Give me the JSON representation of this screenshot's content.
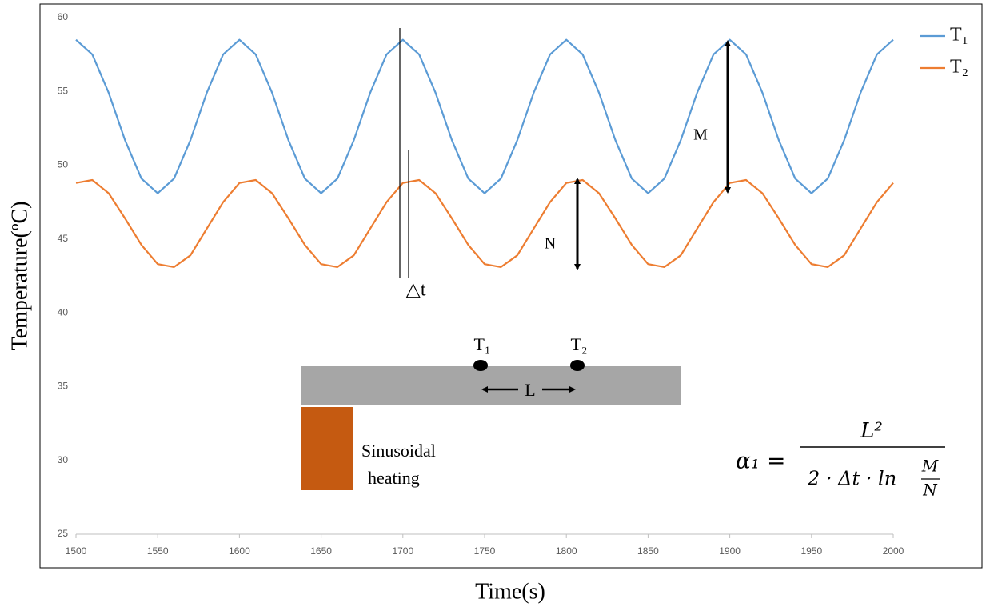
{
  "chart_data": {
    "type": "line",
    "x_label": "Time(s)",
    "y_label": "Temperature(ºC)",
    "x": [
      1500,
      1510,
      1520,
      1530,
      1540,
      1550,
      1560,
      1570,
      1580,
      1590,
      1600,
      1610,
      1620,
      1630,
      1640,
      1650,
      1660,
      1670,
      1680,
      1690,
      1700,
      1710,
      1720,
      1730,
      1740,
      1750,
      1760,
      1770,
      1780,
      1790,
      1800,
      1810,
      1820,
      1830,
      1840,
      1850,
      1860,
      1870,
      1880,
      1890,
      1900,
      1910,
      1920,
      1930,
      1940,
      1950,
      1960,
      1970,
      1980,
      1990,
      2000
    ],
    "series": [
      {
        "name": "T₁",
        "color": "#5b9bd5",
        "values": [
          58.5,
          57.5,
          54.9,
          51.7,
          49.1,
          48.1,
          49.1,
          51.7,
          54.9,
          57.5,
          58.5,
          57.5,
          54.9,
          51.7,
          49.1,
          48.1,
          49.1,
          51.7,
          54.9,
          57.5,
          58.5,
          57.5,
          54.9,
          51.7,
          49.1,
          48.1,
          49.1,
          51.7,
          54.9,
          57.5,
          58.5,
          57.5,
          54.9,
          51.7,
          49.1,
          48.1,
          49.1,
          51.7,
          54.9,
          57.5,
          58.5,
          57.5,
          54.9,
          51.7,
          49.1,
          48.1,
          49.1,
          51.7,
          54.9,
          57.5,
          58.5
        ]
      },
      {
        "name": "T₂",
        "color": "#ed7d31",
        "values": [
          48.8,
          49.0,
          48.1,
          46.4,
          44.6,
          43.3,
          43.1,
          43.9,
          45.7,
          47.5,
          48.8,
          49.0,
          48.1,
          46.4,
          44.6,
          43.3,
          43.1,
          43.9,
          45.7,
          47.5,
          48.8,
          49.0,
          48.1,
          46.4,
          44.6,
          43.3,
          43.1,
          43.9,
          45.7,
          47.5,
          48.8,
          49.0,
          48.1,
          46.4,
          44.6,
          43.3,
          43.1,
          43.9,
          45.7,
          47.5,
          48.8,
          49.0,
          48.1,
          46.4,
          44.6,
          43.3,
          43.1,
          43.9,
          45.7,
          47.5,
          48.8
        ]
      }
    ],
    "xlim": [
      1500,
      2000
    ],
    "xticks": [
      1500,
      1550,
      1600,
      1650,
      1700,
      1750,
      1800,
      1850,
      1900,
      1950,
      2000
    ],
    "ylim": [
      25,
      60
    ],
    "yticks": [
      25,
      30,
      35,
      40,
      45,
      50,
      55,
      60
    ],
    "legend": "right",
    "annotations": {
      "delta_t": "△t",
      "m": "M",
      "n": "N",
      "probe_1": "T₁",
      "probe_2": "T₂",
      "length": "L",
      "heater_line_1": "Sinusoidal",
      "heater_line_2": "heating",
      "formula_lhs": "α₁ =",
      "formula_numerator": "L²",
      "formula_denominator": "2 · Δt · ln",
      "formula_ratio_top": "M",
      "formula_ratio_bottom": "N"
    }
  }
}
